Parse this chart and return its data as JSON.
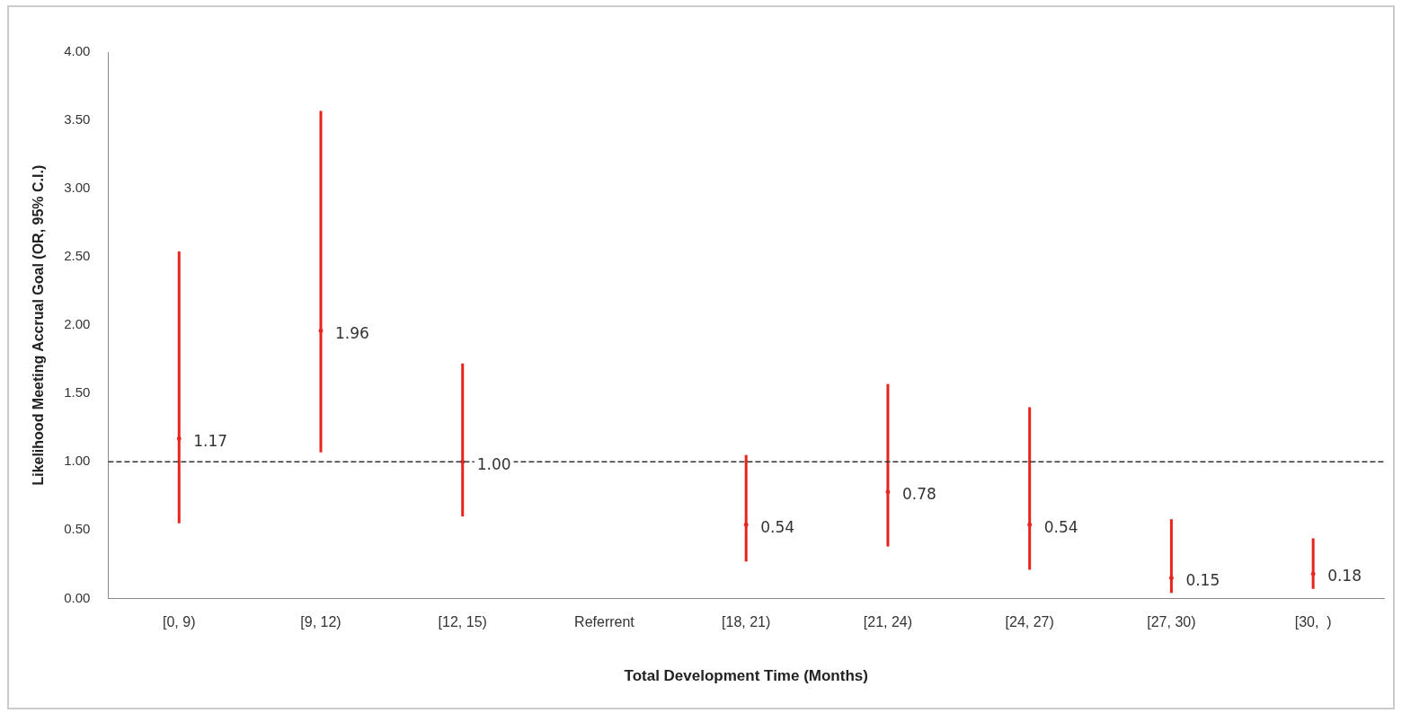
{
  "chart_data": {
    "type": "scatter",
    "xlabel": "Total Development Time (Months)",
    "ylabel": "Likelihood Meeting Accrual Goal (OR, 95% C.I.)",
    "categories": [
      "[0, 9)",
      "[9, 12)",
      "[12, 15)",
      "Referrent",
      "[18, 21)",
      "[21, 24)",
      "[24, 27)",
      "[27, 30)",
      "[30,  )"
    ],
    "series": [
      {
        "color": "#e8231e",
        "values": [
          1.17,
          1.96,
          1.0,
          null,
          0.54,
          0.78,
          0.54,
          0.15,
          0.18
        ],
        "errors": [
          [
            0.55,
            2.54
          ],
          [
            1.07,
            3.57
          ],
          [
            0.6,
            1.72
          ],
          null,
          [
            0.27,
            1.05
          ],
          [
            0.38,
            1.57
          ],
          [
            0.21,
            1.4
          ],
          [
            0.04,
            0.58
          ],
          [
            0.07,
            0.44
          ]
        ],
        "value_labels": [
          "1.17",
          "1.96",
          "1.00",
          null,
          "0.54",
          "0.78",
          "0.54",
          "0.15",
          "0.18"
        ]
      }
    ],
    "ylim": [
      0,
      4
    ],
    "yticks": [
      {
        "value": 0,
        "label": "0.00"
      },
      {
        "value": 0.5,
        "label": "0.50"
      },
      {
        "value": 1,
        "label": "1.00"
      },
      {
        "value": 1.5,
        "label": "1.50"
      },
      {
        "value": 2,
        "label": "2.00"
      },
      {
        "value": 2.5,
        "label": "2.50"
      },
      {
        "value": 3,
        "label": "3.00"
      },
      {
        "value": 3.5,
        "label": "3.50"
      },
      {
        "value": 4,
        "label": "4.00"
      }
    ],
    "ref_lines": [
      {
        "axis": "y",
        "value": 1,
        "label": null,
        "color": "#333333",
        "line_style": "dashed"
      }
    ],
    "grid": false,
    "legend": false,
    "marker": "circle"
  }
}
